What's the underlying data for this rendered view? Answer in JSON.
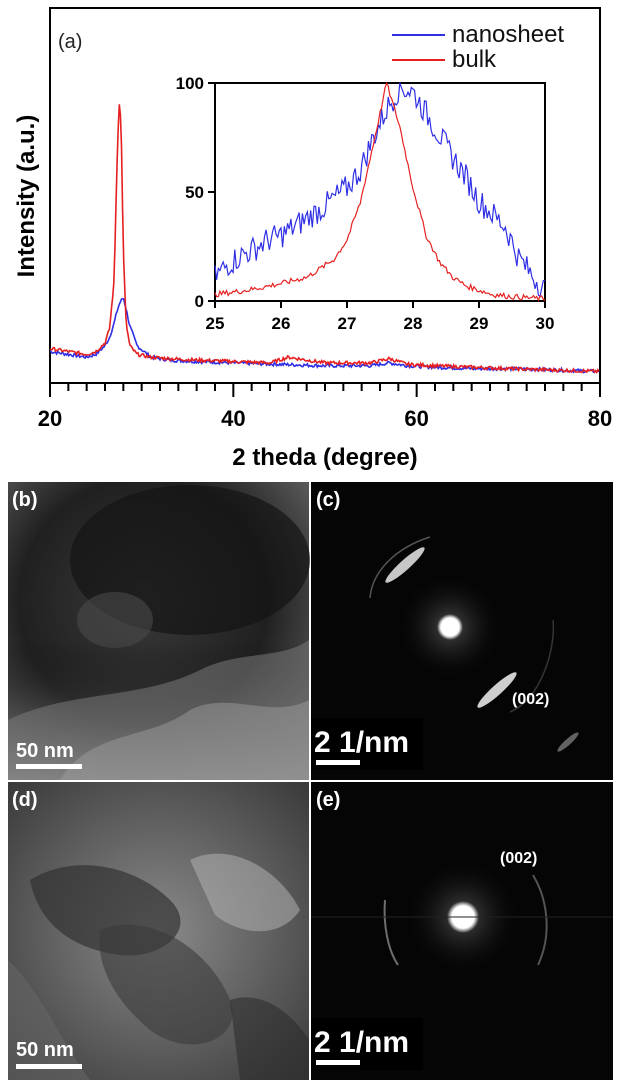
{
  "panel_a": {
    "label": "(a)",
    "legend": [
      "nanosheet",
      "bulk"
    ]
  },
  "chart_data": [
    {
      "type": "line",
      "title": "",
      "xlabel": "2 theda (degree)",
      "ylabel": "Intensity (a.u.)",
      "xlim": [
        20,
        80
      ],
      "xticks": [
        "20",
        "40",
        "60",
        "80"
      ],
      "yticks": [],
      "grid": false,
      "legend_position": "top-right",
      "series": [
        {
          "name": "nanosheet",
          "color": "#2f2fe6",
          "x": [
            20,
            22,
            24,
            25,
            26,
            26.5,
            27,
            27.3,
            27.6,
            28,
            28.3,
            28.7,
            29.5,
            31,
            33,
            36,
            40,
            45,
            50,
            55,
            57,
            59,
            62,
            66,
            70,
            75,
            80
          ],
          "y": [
            0.1,
            0.09,
            0.08,
            0.09,
            0.12,
            0.15,
            0.2,
            0.24,
            0.27,
            0.29,
            0.25,
            0.19,
            0.12,
            0.08,
            0.07,
            0.065,
            0.06,
            0.055,
            0.05,
            0.05,
            0.06,
            0.05,
            0.045,
            0.04,
            0.04,
            0.035,
            0.03
          ]
        },
        {
          "name": "bulk",
          "color": "#e62020",
          "x": [
            20,
            22,
            24,
            25,
            26,
            26.5,
            27,
            27.2,
            27.4,
            27.6,
            27.8,
            28,
            28.3,
            28.7,
            29.5,
            31,
            33,
            36,
            40,
            44,
            46,
            50,
            55,
            57,
            59,
            62,
            66,
            70,
            75,
            80
          ],
          "y": [
            0.11,
            0.1,
            0.09,
            0.1,
            0.13,
            0.18,
            0.35,
            0.62,
            0.86,
            1.0,
            0.82,
            0.45,
            0.2,
            0.12,
            0.09,
            0.08,
            0.075,
            0.07,
            0.065,
            0.06,
            0.08,
            0.06,
            0.06,
            0.075,
            0.055,
            0.05,
            0.045,
            0.04,
            0.035,
            0.03
          ]
        }
      ]
    },
    {
      "type": "line",
      "title": "",
      "xlim": [
        25,
        30
      ],
      "ylim": [
        0,
        100
      ],
      "xticks": [
        "25",
        "26",
        "27",
        "28",
        "29",
        "30"
      ],
      "yticks": [
        "0",
        "50",
        "100"
      ],
      "grid": false,
      "series": [
        {
          "name": "nanosheet",
          "color": "#2f2fe6",
          "x": [
            25,
            25.2,
            25.4,
            25.6,
            25.8,
            26,
            26.2,
            26.4,
            26.6,
            26.8,
            27,
            27.2,
            27.4,
            27.6,
            27.8,
            28,
            28.2,
            28.4,
            28.6,
            28.8,
            29,
            29.2,
            29.4,
            29.6,
            29.8,
            30
          ],
          "y": [
            11,
            17,
            21,
            24,
            28,
            30,
            34,
            38,
            42,
            47,
            52,
            60,
            75,
            88,
            98,
            96,
            86,
            76,
            66,
            57,
            46,
            40,
            34,
            20,
            12,
            5
          ]
        },
        {
          "name": "bulk",
          "color": "#e62020",
          "x": [
            25,
            25.5,
            26,
            26.4,
            26.8,
            27,
            27.2,
            27.4,
            27.6,
            27.8,
            28,
            28.2,
            28.4,
            28.6,
            28.8,
            29,
            29.2,
            29.5,
            30
          ],
          "y": [
            3,
            5,
            8,
            11,
            19,
            28,
            45,
            72,
            100,
            80,
            52,
            30,
            18,
            11,
            7,
            5,
            3,
            2,
            1
          ]
        }
      ]
    }
  ],
  "panel_b": {
    "label": "(b)",
    "scale_bar": "50 nm"
  },
  "panel_c": {
    "label": "(c)",
    "scale_bar": "2 1/nm",
    "annotation": "(002)"
  },
  "panel_d": {
    "label": "(d)",
    "scale_bar": "50 nm"
  },
  "panel_e": {
    "label": "(e)",
    "scale_bar": "2 1/nm",
    "annotation": "(002)"
  }
}
